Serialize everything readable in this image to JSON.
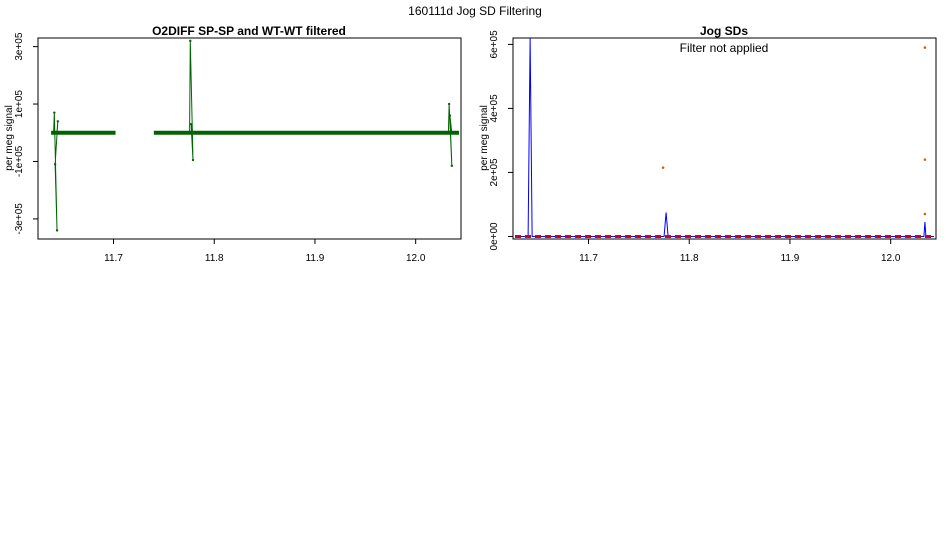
{
  "page_title": "160111d   Jog SD Filtering",
  "chart_data": [
    {
      "id": "left",
      "type": "line",
      "title": "O2DIFF SP-SP and WT-WT filtered",
      "xlabel": "",
      "ylabel": "per meg signal",
      "xlim": [
        11.625,
        12.045
      ],
      "ylim": [
        -370000,
        330000
      ],
      "x_ticks": [
        11.7,
        11.8,
        11.9,
        12.0
      ],
      "x_tick_labels": [
        "11.7",
        "11.8",
        "11.9",
        "12.0"
      ],
      "y_ticks": [
        -300000,
        -100000,
        100000,
        300000
      ],
      "y_tick_labels": [
        "-3e+05",
        "-1e+05",
        "1e+05",
        "3e+05"
      ],
      "grid": false,
      "series": [
        {
          "color": "#006400",
          "baseline": 0,
          "segments": [
            [
              11.638,
              11.702
            ],
            [
              11.74,
              11.762
            ],
            [
              11.762,
              12.043
            ]
          ],
          "spikes": [
            {
              "x": 11.642,
              "values": [
                70000,
                -340000,
                -110000,
                40000
              ]
            },
            {
              "x": 11.777,
              "values": [
                320000,
                -95000,
                30000
              ]
            },
            {
              "x": 12.034,
              "values": [
                100000,
                -115000,
                60000
              ]
            }
          ]
        }
      ]
    },
    {
      "id": "right",
      "type": "line",
      "title": "Jog SDs",
      "annotation": "Filter not applied",
      "xlabel": "",
      "ylabel": "per meg signal",
      "xlim": [
        11.625,
        12.045
      ],
      "ylim": [
        -8000,
        620000
      ],
      "x_ticks": [
        11.7,
        11.8,
        11.9,
        12.0
      ],
      "x_tick_labels": [
        "11.7",
        "11.8",
        "11.9",
        "12.0"
      ],
      "y_ticks": [
        0,
        200000,
        400000,
        600000
      ],
      "y_tick_labels": [
        "0e+00",
        "2e+05",
        "4e+05",
        "6e+05"
      ],
      "grid": false,
      "series": [
        {
          "color": "#0000ff",
          "points": [
            [
              11.627,
              0
            ],
            [
              11.64,
              0
            ],
            [
              11.642,
              620000
            ],
            [
              11.644,
              0
            ],
            [
              11.7,
              0
            ],
            [
              11.74,
              0
            ],
            [
              11.775,
              0
            ],
            [
              11.777,
              75000
            ],
            [
              11.779,
              0
            ],
            [
              12.033,
              0
            ],
            [
              12.034,
              45000
            ],
            [
              12.035,
              0
            ],
            [
              12.043,
              0
            ]
          ]
        },
        {
          "color": "#00aa44",
          "points": [
            [
              11.627,
              0
            ],
            [
              11.702,
              0
            ],
            [
              11.74,
              0
            ],
            [
              12.043,
              0
            ]
          ]
        },
        {
          "color": "#cc0033",
          "points": [
            [
              11.627,
              0
            ],
            [
              11.702,
              0
            ],
            [
              11.74,
              0
            ],
            [
              12.043,
              0
            ]
          ]
        },
        {
          "color": "#cc6600",
          "scatter": [
            [
              11.774,
              215000
            ],
            [
              12.034,
              590000
            ],
            [
              12.034,
              240000
            ],
            [
              12.034,
              70000
            ]
          ]
        }
      ]
    }
  ]
}
